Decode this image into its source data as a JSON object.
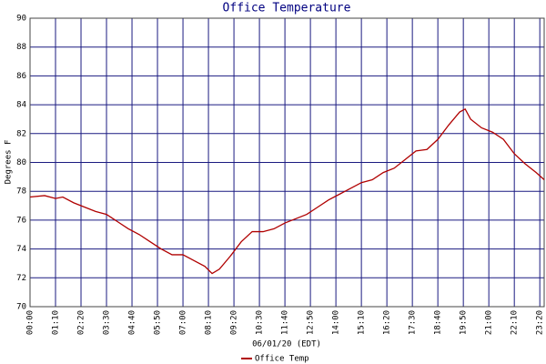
{
  "chart_data": {
    "type": "line",
    "title": "Office Temperature",
    "ylabel": "Degrees F",
    "xlabel": "06/01/20 (EDT)",
    "x": [
      0,
      40,
      70,
      90,
      120,
      150,
      180,
      210,
      240,
      270,
      300,
      330,
      360,
      390,
      420,
      450,
      480,
      500,
      520,
      550,
      580,
      610,
      640,
      670,
      700,
      730,
      760,
      790,
      820,
      850,
      880,
      910,
      940,
      970,
      1000,
      1030,
      1060,
      1090,
      1120,
      1150,
      1180,
      1195,
      1210,
      1240,
      1270,
      1300,
      1330,
      1360,
      1390,
      1412
    ],
    "series": [
      {
        "name": "Office Temp",
        "color": "#b00000",
        "values": [
          77.6,
          77.7,
          77.5,
          77.6,
          77.2,
          76.9,
          76.6,
          76.4,
          75.9,
          75.4,
          75.0,
          74.5,
          74.0,
          73.6,
          73.6,
          73.2,
          72.8,
          72.3,
          72.6,
          73.5,
          74.5,
          75.2,
          75.2,
          75.4,
          75.8,
          76.1,
          76.4,
          76.9,
          77.4,
          77.8,
          78.2,
          78.6,
          78.8,
          79.3,
          79.6,
          80.2,
          80.8,
          80.9,
          81.6,
          82.6,
          83.5,
          83.7,
          83.0,
          82.4,
          82.1,
          81.6,
          80.6,
          79.9,
          79.3,
          78.8
        ]
      }
    ],
    "xlim": [
      0,
      1412
    ],
    "ylim": [
      70,
      90
    ],
    "yticks": [
      70,
      72,
      74,
      76,
      78,
      80,
      82,
      84,
      86,
      88,
      90
    ],
    "xticks": [
      {
        "value": 0,
        "label": "00:00"
      },
      {
        "value": 70,
        "label": "01:10"
      },
      {
        "value": 140,
        "label": "02:20"
      },
      {
        "value": 210,
        "label": "03:30"
      },
      {
        "value": 280,
        "label": "04:40"
      },
      {
        "value": 350,
        "label": "05:50"
      },
      {
        "value": 420,
        "label": "07:00"
      },
      {
        "value": 490,
        "label": "08:10"
      },
      {
        "value": 560,
        "label": "09:20"
      },
      {
        "value": 630,
        "label": "10:30"
      },
      {
        "value": 700,
        "label": "11:40"
      },
      {
        "value": 770,
        "label": "12:50"
      },
      {
        "value": 840,
        "label": "14:00"
      },
      {
        "value": 910,
        "label": "15:10"
      },
      {
        "value": 980,
        "label": "16:20"
      },
      {
        "value": 1050,
        "label": "17:30"
      },
      {
        "value": 1120,
        "label": "18:40"
      },
      {
        "value": 1190,
        "label": "19:50"
      },
      {
        "value": 1260,
        "label": "21:00"
      },
      {
        "value": 1330,
        "label": "22:10"
      },
      {
        "value": 1400,
        "label": "23:20"
      }
    ],
    "grid": true
  }
}
